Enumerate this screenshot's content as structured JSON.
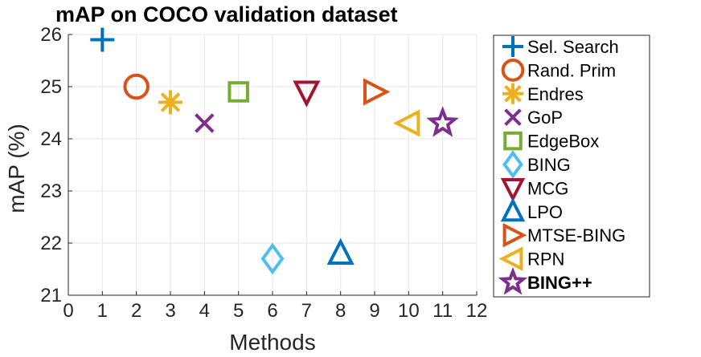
{
  "chart_data": {
    "type": "scatter",
    "title": "mAP on COCO validation dataset",
    "xlabel": "Methods",
    "ylabel": "mAP (%)",
    "xlim": [
      0,
      12
    ],
    "ylim": [
      21,
      26
    ],
    "xticks": [
      0,
      1,
      2,
      3,
      4,
      5,
      6,
      7,
      8,
      9,
      10,
      11,
      12
    ],
    "yticks": [
      21,
      22,
      23,
      24,
      25,
      26
    ],
    "grid": true,
    "legend_position": "outside-right",
    "series": [
      {
        "name": "Sel. Search",
        "x": 1,
        "y": 25.9,
        "marker": "plus",
        "color": "#0072BD"
      },
      {
        "name": "Rand. Prim",
        "x": 2,
        "y": 25.0,
        "marker": "circle",
        "color": "#D95319"
      },
      {
        "name": "Endres",
        "x": 3,
        "y": 24.7,
        "marker": "asterisk",
        "color": "#EDB120"
      },
      {
        "name": "GoP",
        "x": 4,
        "y": 24.3,
        "marker": "x",
        "color": "#7E2F8E"
      },
      {
        "name": "EdgeBox",
        "x": 5,
        "y": 24.9,
        "marker": "square",
        "color": "#77AC30"
      },
      {
        "name": "BING",
        "x": 6,
        "y": 21.7,
        "marker": "diamond",
        "color": "#4DBEEE"
      },
      {
        "name": "MCG",
        "x": 7,
        "y": 24.9,
        "marker": "triangle-down",
        "color": "#A2142F"
      },
      {
        "name": "LPO",
        "x": 8,
        "y": 21.8,
        "marker": "triangle-up",
        "color": "#0072BD"
      },
      {
        "name": "MTSE-BING",
        "x": 9,
        "y": 24.9,
        "marker": "triangle-right",
        "color": "#D95319"
      },
      {
        "name": "RPN",
        "x": 10,
        "y": 24.3,
        "marker": "triangle-left",
        "color": "#EDB120"
      },
      {
        "name": "BING++",
        "x": 11,
        "y": 24.3,
        "marker": "star",
        "color": "#7E2F8E",
        "bold": true
      }
    ]
  }
}
